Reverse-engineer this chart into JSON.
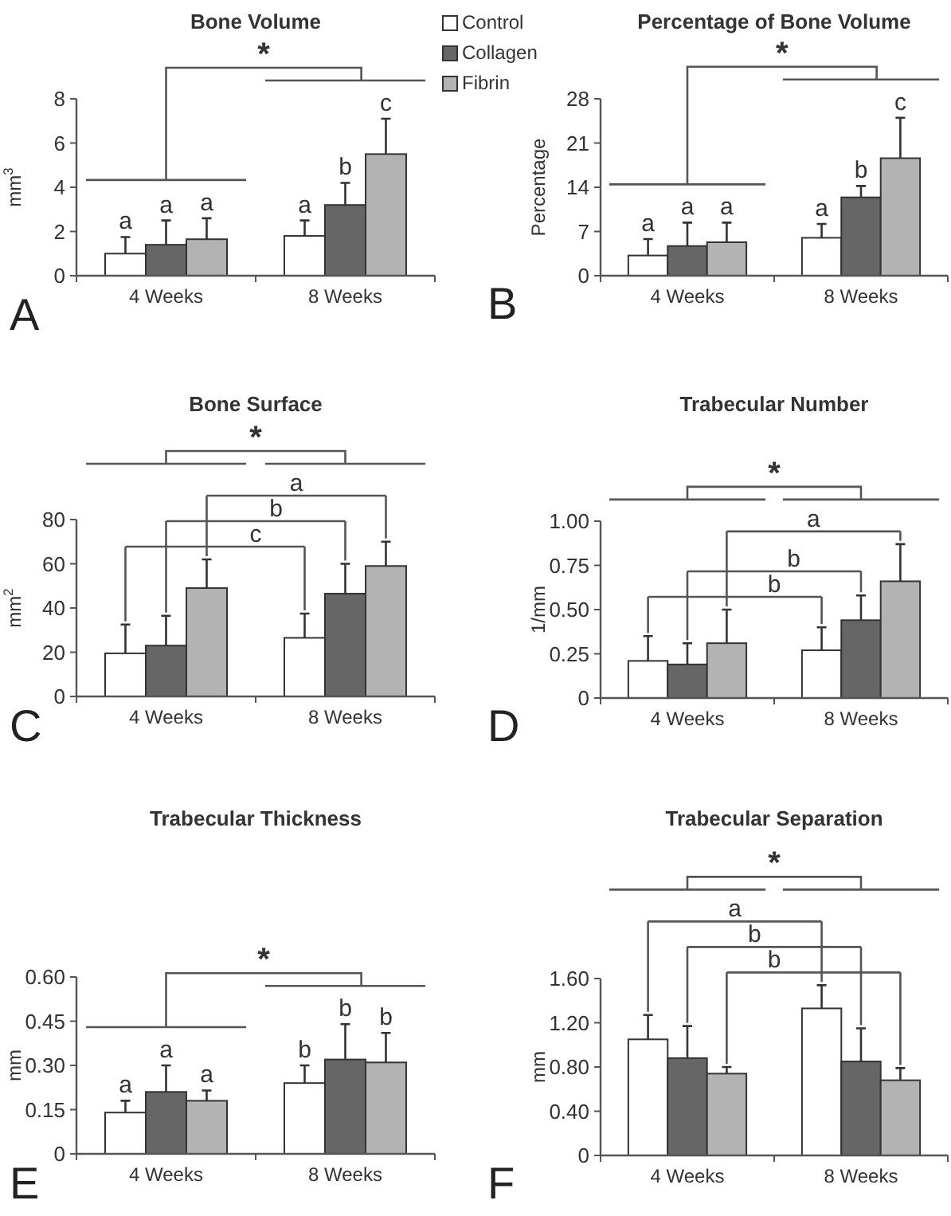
{
  "chart_data": [
    {
      "type": "bar",
      "title": "Bone Volume",
      "ylabel": "mm$^{3}$",
      "categories": [
        "4 Weeks",
        "8 Weeks"
      ],
      "ylim": [
        0,
        8
      ],
      "yticks": [
        0,
        2,
        4,
        6,
        8
      ],
      "legend": "top right",
      "series": [
        {
          "name": "Control",
          "color": "#ffffff",
          "values": [
            1.0,
            1.8
          ],
          "errors": [
            0.75,
            0.7
          ]
        },
        {
          "name": "Collagen",
          "color": "#666666",
          "values": [
            1.4,
            3.2
          ],
          "errors": [
            1.1,
            1.0
          ]
        },
        {
          "name": "Fibrin",
          "color": "#b3b3b3",
          "values": [
            1.65,
            5.5
          ],
          "errors": [
            0.95,
            1.6
          ]
        }
      ],
      "annotations": [
        "A",
        "*",
        "a",
        "a",
        "a",
        "a",
        "b",
        "c"
      ]
    },
    {
      "type": "bar",
      "title": "Percentage of Bone Volume",
      "ylabel": "Percentage",
      "categories": [
        "4 Weeks",
        "8 Weeks"
      ],
      "ylim": [
        0,
        28
      ],
      "yticks": [
        0,
        7,
        14,
        21,
        28
      ],
      "series": [
        {
          "color": "#ffffff",
          "values": [
            3.2,
            6.0
          ],
          "errors": [
            2.6,
            2.2
          ]
        },
        {
          "color": "#666666",
          "values": [
            4.7,
            12.4
          ],
          "errors": [
            3.7,
            1.8
          ]
        },
        {
          "color": "#b3b3b3",
          "values": [
            5.3,
            18.6
          ],
          "errors": [
            3.1,
            6.4
          ]
        }
      ],
      "annotations": [
        "B",
        "*",
        "a",
        "a",
        "a",
        "a",
        "b",
        "c"
      ]
    },
    {
      "type": "bar",
      "title": "Bone Surface",
      "ylabel": "mm$^{2}$",
      "categories": [
        "4 Weeks",
        "8 Weeks"
      ],
      "ylim": [
        0,
        80
      ],
      "yticks": [
        0,
        20,
        40,
        60,
        80
      ],
      "series": [
        {
          "color": "#ffffff",
          "values": [
            19.5,
            26.5
          ],
          "errors": [
            13,
            11
          ]
        },
        {
          "color": "#666666",
          "values": [
            23,
            46.5
          ],
          "errors": [
            13.5,
            13.5
          ]
        },
        {
          "color": "#b3b3b3",
          "values": [
            49,
            59
          ],
          "errors": [
            13,
            11
          ]
        }
      ],
      "annotations": [
        "C",
        "*",
        "c",
        "b",
        "a"
      ]
    },
    {
      "type": "bar",
      "title": "Trabecular Number",
      "ylabel": "1/mm",
      "categories": [
        "4 Weeks",
        "8 Weeks"
      ],
      "ylim": [
        0,
        1
      ],
      "yticks": [
        0,
        {
          "value": 0.25,
          "label": "0.25"
        },
        {
          "value": 0.5,
          "label": "0.50"
        },
        {
          "value": 0.75,
          "label": "0.75"
        },
        {
          "value": 1,
          "label": "1.00"
        }
      ],
      "series": [
        {
          "color": "#ffffff",
          "values": [
            0.21,
            0.27
          ],
          "errors": [
            0.14,
            0.13
          ]
        },
        {
          "color": "#666666",
          "values": [
            0.19,
            0.44
          ],
          "errors": [
            0.12,
            0.14
          ]
        },
        {
          "color": "#b3b3b3",
          "values": [
            0.31,
            0.66
          ],
          "errors": [
            0.19,
            0.21
          ]
        }
      ],
      "annotations": [
        "D",
        "*",
        "b",
        "b",
        "a"
      ]
    },
    {
      "type": "bar",
      "title": "Trabecular Thickness",
      "ylabel": "mm",
      "categories": [
        "4 Weeks",
        "8 Weeks"
      ],
      "ylim": [
        0,
        0.6
      ],
      "yticks": [
        0,
        {
          "value": 0.15,
          "label": "0.15"
        },
        {
          "value": 0.3,
          "label": "0.30"
        },
        {
          "value": 0.45,
          "label": "0.45"
        },
        {
          "value": 0.6,
          "label": "0.60"
        }
      ],
      "series": [
        {
          "color": "#ffffff",
          "values": [
            0.14,
            0.24
          ],
          "errors": [
            0.04,
            0.06
          ]
        },
        {
          "color": "#666666",
          "values": [
            0.21,
            0.32
          ],
          "errors": [
            0.09,
            0.12
          ]
        },
        {
          "color": "#b3b3b3",
          "values": [
            0.18,
            0.31
          ],
          "errors": [
            0.035,
            0.1
          ]
        }
      ],
      "annotations": [
        "E",
        "*",
        "a",
        "a",
        "a",
        "b",
        "b",
        "b"
      ]
    },
    {
      "type": "bar",
      "title": "Trabecular Separation",
      "ylabel": "mm",
      "categories": [
        "4 Weeks",
        "8 Weeks"
      ],
      "ylim": [
        0,
        1.6
      ],
      "yticks": [
        0,
        {
          "value": 0.4,
          "label": "0.40"
        },
        {
          "value": 0.8,
          "label": "0.80"
        },
        {
          "value": 1.2,
          "label": "1.20"
        },
        {
          "value": 1.6,
          "label": "1.60"
        }
      ],
      "series": [
        {
          "color": "#ffffff",
          "values": [
            1.05,
            1.33
          ],
          "errors": [
            0.22,
            0.21
          ]
        },
        {
          "color": "#666666",
          "values": [
            0.88,
            0.85
          ],
          "errors": [
            0.29,
            0.3
          ]
        },
        {
          "color": "#b3b3b3",
          "values": [
            0.74,
            0.68
          ],
          "errors": [
            0.06,
            0.11
          ]
        }
      ],
      "annotations": [
        "F",
        "*",
        "a",
        "b",
        "b"
      ]
    }
  ]
}
